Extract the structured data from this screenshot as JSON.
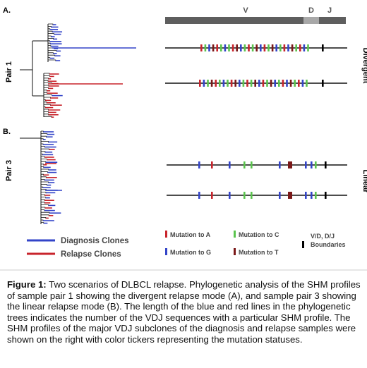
{
  "colors": {
    "diagnosis": "#3344c8",
    "relapse": "#c8242c",
    "mutation_a": "#c8242c",
    "mutation_c": "#5bc44e",
    "mutation_g": "#3344c8",
    "mutation_t": "#7a1818",
    "boundary": "#000000",
    "v_bar": "#5e5e5e",
    "d_bar": "#a8a8a8",
    "j_bar": "#5e5e5e"
  },
  "panels": {
    "a": {
      "letter": "A.",
      "pair": "Pair 1",
      "mode": "Divergent"
    },
    "b": {
      "letter": "B.",
      "pair": "Pair 3",
      "mode": "Linear"
    }
  },
  "segments": {
    "v": "V",
    "d": "D",
    "j": "J"
  },
  "legend": {
    "diagnosis": "Diagnosis Clones",
    "relapse": "Relapse Clones",
    "mut_a": "Mutation to A",
    "mut_c": "Mutation to C",
    "mut_g": "Mutation to G",
    "mut_t": "Mutation to T",
    "boundary_1": "V/D, D/J",
    "boundary_2": "Boundaries"
  },
  "caption": {
    "label": "Figure 1:",
    "text": " Two scenarios of DLBCL relapse.  Phylogenetic analysis of the SHM profiles of sample pair 1 showing the divergent relapse mode (A), and sample pair 3 showing the linear relapse mode (B).  The length of the blue and red lines in the phylogenetic trees indicates the number of the VDJ sequences with a particular SHM profile.  The SHM profiles of the major VDJ subclones of the diagnosis and relapse samples were shown on the right with color tickers representing the mutation statuses."
  }
}
